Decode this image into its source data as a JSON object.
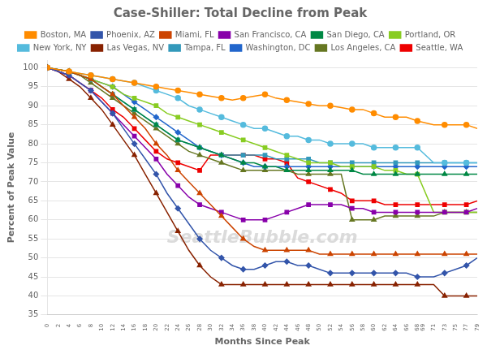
{
  "chart_data": {
    "type": "line",
    "title": "Case-Shiller: Total Decline from Peak",
    "x_label": "Months Since Peak",
    "y_label": "Percent of Peak Value",
    "annotations": [
      "SeattleBubble.com"
    ],
    "legend": "top",
    "grid": true,
    "xlim": [
      0,
      79
    ],
    "ylim": [
      35,
      102
    ],
    "xticks": [
      0,
      2,
      4,
      6,
      8,
      10,
      12,
      14,
      16,
      18,
      20,
      22,
      24,
      26,
      28,
      30,
      32,
      34,
      36,
      38,
      40,
      42,
      44,
      46,
      48,
      50,
      52,
      54,
      56,
      58,
      60,
      62,
      64,
      66,
      68,
      69,
      71,
      73,
      75,
      77,
      79
    ],
    "yticks": [
      35,
      40,
      45,
      50,
      55,
      60,
      65,
      70,
      75,
      80,
      85,
      90,
      95,
      100
    ],
    "x": [
      0,
      2,
      4,
      6,
      8,
      10,
      12,
      14,
      16,
      18,
      20,
      22,
      24,
      26,
      28,
      30,
      32,
      34,
      36,
      38,
      40,
      42,
      44,
      46,
      48,
      50,
      52,
      54,
      56,
      58,
      60,
      62,
      64,
      66,
      68,
      71,
      73,
      75,
      77,
      79
    ],
    "series": [
      {
        "name": "Boston, MA",
        "color": "#FF8C00",
        "marker": "circle",
        "values": [
          100,
          99.5,
          99,
          98.5,
          98,
          97.5,
          97,
          96.5,
          96,
          95.5,
          95,
          94.5,
          94,
          93.5,
          93,
          92.5,
          92,
          91.5,
          92,
          92.5,
          93,
          92,
          91.5,
          91,
          90.5,
          90,
          90,
          89.5,
          89,
          89,
          88,
          87,
          87,
          87,
          86,
          85,
          85,
          85,
          85,
          84
        ]
      },
      {
        "name": "Phoenix, AZ",
        "color": "#3355AA",
        "marker": "diamond",
        "values": [
          100,
          99,
          98,
          96,
          94,
          91,
          88,
          84,
          80,
          76,
          72,
          67,
          63,
          59,
          55,
          52,
          50,
          48,
          47,
          47,
          48,
          49,
          49,
          48,
          48,
          47,
          46,
          46,
          46,
          46,
          46,
          46,
          46,
          46,
          45,
          45,
          46,
          47,
          48,
          50
        ]
      },
      {
        "name": "Miami, FL",
        "color": "#CC4400",
        "marker": "triangle",
        "values": [
          100,
          99.5,
          99,
          98,
          97,
          95,
          93,
          90,
          87,
          84,
          80,
          77,
          73,
          70,
          67,
          64,
          61,
          58,
          55,
          53,
          52,
          52,
          52,
          52,
          52,
          51,
          51,
          51,
          51,
          51,
          51,
          51,
          51,
          51,
          51,
          51,
          51,
          51,
          51,
          51
        ]
      },
      {
        "name": "San Francisco, CA",
        "color": "#8800AA",
        "marker": "square",
        "values": [
          100,
          99,
          98,
          96,
          94,
          91,
          88,
          85,
          82,
          79,
          76,
          72,
          69,
          66,
          64,
          63,
          62,
          61,
          60,
          60,
          60,
          61,
          62,
          63,
          64,
          64,
          64,
          64,
          63,
          63,
          62,
          62,
          62,
          62,
          62,
          62,
          62,
          62,
          62,
          63
        ]
      },
      {
        "name": "San Diego, CA",
        "color": "#008844",
        "marker": "triangle",
        "values": [
          100,
          99.5,
          99,
          98,
          97,
          95,
          93,
          91,
          89,
          87,
          85,
          83,
          81,
          80,
          79,
          78,
          77,
          76,
          75,
          75,
          74,
          74,
          73,
          73,
          73,
          73,
          73,
          73,
          73,
          72,
          72,
          72,
          72,
          72,
          72,
          72,
          72,
          72,
          72,
          72
        ]
      },
      {
        "name": "Portland, OR",
        "color": "#88CC22",
        "marker": "square",
        "values": [
          100,
          99.5,
          99,
          98,
          97,
          96,
          95,
          93,
          92,
          91,
          90,
          88,
          87,
          86,
          85,
          84,
          83,
          82,
          81,
          80,
          79,
          78,
          77,
          76,
          75,
          75,
          75,
          74,
          74,
          74,
          74,
          73,
          73,
          72,
          72,
          62,
          62,
          62,
          62,
          62
        ]
      },
      {
        "name": "New York, NY",
        "color": "#55BBDD",
        "marker": "circle",
        "values": [
          100,
          99.5,
          99,
          98.5,
          98,
          97.5,
          97,
          96.5,
          96,
          95,
          94,
          93,
          92,
          90,
          89,
          88,
          87,
          86,
          85,
          84,
          84,
          83,
          82,
          82,
          81,
          81,
          80,
          80,
          80,
          80,
          79,
          79,
          79,
          79,
          79,
          75,
          75,
          75,
          75,
          75
        ]
      },
      {
        "name": "Las Vegas, NV",
        "color": "#882200",
        "marker": "triangle",
        "values": [
          100,
          99,
          97,
          95,
          92,
          89,
          85,
          81,
          77,
          72,
          67,
          62,
          57,
          52,
          48,
          45,
          43,
          43,
          43,
          43,
          43,
          43,
          43,
          43,
          43,
          43,
          43,
          43,
          43,
          43,
          43,
          43,
          43,
          43,
          43,
          43,
          40,
          40,
          40,
          40
        ]
      },
      {
        "name": "Tampa, FL",
        "color": "#3399BB",
        "marker": "square",
        "values": [
          100,
          99.5,
          99,
          98,
          97,
          95,
          93,
          91,
          89,
          87,
          85,
          83,
          81,
          80,
          79,
          78,
          77,
          77,
          77,
          77,
          77,
          76,
          76,
          76,
          76,
          75,
          75,
          75,
          75,
          75,
          75,
          75,
          75,
          75,
          75,
          75,
          75,
          75,
          75,
          75
        ]
      },
      {
        "name": "Washington, DC",
        "color": "#2266CC",
        "marker": "diamond",
        "values": [
          100,
          99.5,
          99,
          98,
          97,
          96,
          95,
          93,
          91,
          89,
          87,
          85,
          83,
          81,
          79,
          78,
          77,
          76,
          75,
          74,
          74,
          74,
          74,
          74,
          74,
          74,
          74,
          74,
          74,
          74,
          74,
          74,
          74,
          74,
          74,
          74,
          74,
          74,
          74,
          74
        ]
      },
      {
        "name": "Los Angeles, CA",
        "color": "#667722",
        "marker": "triangle",
        "values": [
          100,
          99.5,
          99,
          98,
          96,
          94,
          92,
          90,
          88,
          86,
          84,
          82,
          80,
          78,
          77,
          76,
          75,
          74,
          73,
          73,
          73,
          73,
          73,
          72,
          72,
          72,
          72,
          72,
          60,
          60,
          60,
          61,
          61,
          61,
          61,
          61,
          62,
          62,
          62,
          62
        ]
      },
      {
        "name": "Seattle, WA",
        "color": "#EE0000",
        "marker": "square",
        "values": [
          100,
          99,
          98,
          96,
          94,
          92,
          89,
          87,
          84,
          81,
          78,
          76,
          75,
          74,
          73,
          77,
          77,
          77,
          77,
          77,
          76,
          76,
          75,
          71,
          70,
          69,
          68,
          67,
          65,
          65,
          65,
          64,
          64,
          64,
          64,
          64,
          64,
          64,
          64,
          65
        ]
      }
    ]
  }
}
